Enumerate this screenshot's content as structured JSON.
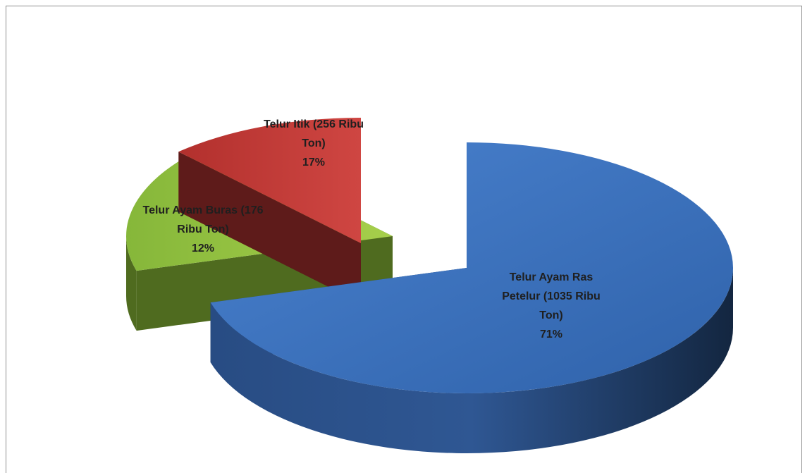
{
  "chart_data": {
    "type": "pie",
    "style": "3d-exploded",
    "title": "",
    "slices": [
      {
        "key": "ras",
        "label_lines": [
          "Telur Ayam Ras",
          "Petelur (1035 Ribu",
          "Ton)"
        ],
        "value": 1035,
        "unit": "Ribu Ton",
        "percent_label": "71%",
        "color_top": "#3a6fb9",
        "color_side": "#1f3b66"
      },
      {
        "key": "itik",
        "label_lines": [
          "Telur Itik (256  Ribu",
          "Ton)"
        ],
        "value": 256,
        "unit": "Ribu Ton",
        "percent_label": "17%",
        "color_top": "#9bc544",
        "color_side": "#4f6b1f"
      },
      {
        "key": "buras",
        "label_lines": [
          "Telur Ayam Buras (176",
          "Ribu Ton)"
        ],
        "value": 176,
        "unit": "Ribu Ton",
        "percent_label": "12%",
        "color_top": "#c03b37",
        "color_side": "#5e1b1a"
      }
    ]
  }
}
